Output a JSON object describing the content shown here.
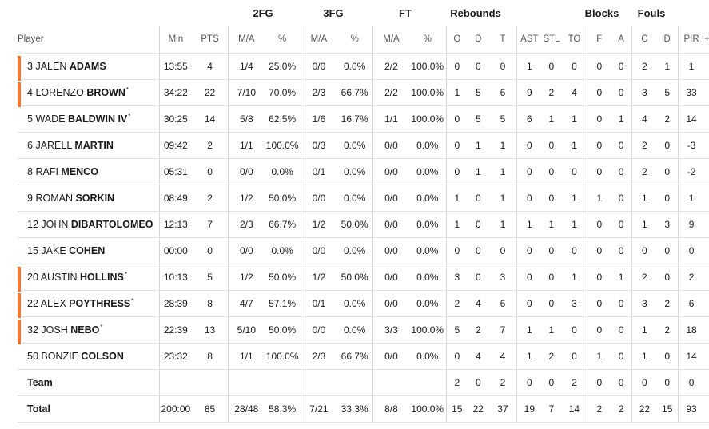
{
  "groups": {
    "two_fg": "2FG",
    "three_fg": "3FG",
    "ft": "FT",
    "rebounds": "Rebounds",
    "blocks": "Blocks",
    "fouls": "Fouls"
  },
  "columns": [
    "Player",
    "Min",
    "PTS",
    "M/A",
    "%",
    "M/A",
    "%",
    "M/A",
    "%",
    "O",
    "D",
    "T",
    "AST",
    "STL",
    "TO",
    "F",
    "A",
    "C",
    "D",
    "PIR",
    "+/"
  ],
  "accent": "#ee7a3a",
  "players": [
    {
      "num": "3",
      "first": "JALEN",
      "last": "ADAMS",
      "starter": "",
      "bar": true,
      "min": "13:55",
      "pts": "4",
      "fg2": "1/4",
      "fg2p": "25.0%",
      "fg3": "0/0",
      "fg3p": "0.0%",
      "ft": "2/2",
      "ftp": "100.0%",
      "o": "0",
      "d": "0",
      "t": "0",
      "ast": "1",
      "stl": "0",
      "to": "0",
      "bf": "0",
      "ba": "0",
      "fc": "2",
      "fd": "1",
      "pir": "1"
    },
    {
      "num": "4",
      "first": "LORENZO",
      "last": "BROWN",
      "starter": "*",
      "bar": true,
      "min": "34:22",
      "pts": "22",
      "fg2": "7/10",
      "fg2p": "70.0%",
      "fg3": "2/3",
      "fg3p": "66.7%",
      "ft": "2/2",
      "ftp": "100.0%",
      "o": "1",
      "d": "5",
      "t": "6",
      "ast": "9",
      "stl": "2",
      "to": "4",
      "bf": "0",
      "ba": "0",
      "fc": "3",
      "fd": "5",
      "pir": "33"
    },
    {
      "num": "5",
      "first": "WADE",
      "last": "BALDWIN IV",
      "starter": "*",
      "bar": false,
      "min": "30:25",
      "pts": "14",
      "fg2": "5/8",
      "fg2p": "62.5%",
      "fg3": "1/6",
      "fg3p": "16.7%",
      "ft": "1/1",
      "ftp": "100.0%",
      "o": "0",
      "d": "5",
      "t": "5",
      "ast": "6",
      "stl": "1",
      "to": "1",
      "bf": "0",
      "ba": "1",
      "fc": "4",
      "fd": "2",
      "pir": "14"
    },
    {
      "num": "6",
      "first": "JARELL",
      "last": "MARTIN",
      "starter": "",
      "bar": false,
      "min": "09:42",
      "pts": "2",
      "fg2": "1/1",
      "fg2p": "100.0%",
      "fg3": "0/3",
      "fg3p": "0.0%",
      "ft": "0/0",
      "ftp": "0.0%",
      "o": "0",
      "d": "1",
      "t": "1",
      "ast": "0",
      "stl": "0",
      "to": "1",
      "bf": "0",
      "ba": "0",
      "fc": "2",
      "fd": "0",
      "pir": "-3"
    },
    {
      "num": "8",
      "first": "RAFI",
      "last": "MENCO",
      "starter": "",
      "bar": false,
      "min": "05:31",
      "pts": "0",
      "fg2": "0/0",
      "fg2p": "0.0%",
      "fg3": "0/1",
      "fg3p": "0.0%",
      "ft": "0/0",
      "ftp": "0.0%",
      "o": "0",
      "d": "1",
      "t": "1",
      "ast": "0",
      "stl": "0",
      "to": "0",
      "bf": "0",
      "ba": "0",
      "fc": "2",
      "fd": "0",
      "pir": "-2"
    },
    {
      "num": "9",
      "first": "ROMAN",
      "last": "SORKIN",
      "starter": "",
      "bar": false,
      "min": "08:49",
      "pts": "2",
      "fg2": "1/2",
      "fg2p": "50.0%",
      "fg3": "0/0",
      "fg3p": "0.0%",
      "ft": "0/0",
      "ftp": "0.0%",
      "o": "1",
      "d": "0",
      "t": "1",
      "ast": "0",
      "stl": "0",
      "to": "1",
      "bf": "1",
      "ba": "0",
      "fc": "1",
      "fd": "0",
      "pir": "1"
    },
    {
      "num": "12",
      "first": "JOHN",
      "last": "DIBARTOLOMEO",
      "starter": "",
      "bar": false,
      "min": "12:13",
      "pts": "7",
      "fg2": "2/3",
      "fg2p": "66.7%",
      "fg3": "1/2",
      "fg3p": "50.0%",
      "ft": "0/0",
      "ftp": "0.0%",
      "o": "1",
      "d": "0",
      "t": "1",
      "ast": "1",
      "stl": "1",
      "to": "1",
      "bf": "0",
      "ba": "0",
      "fc": "1",
      "fd": "3",
      "pir": "9"
    },
    {
      "num": "15",
      "first": "JAKE",
      "last": "COHEN",
      "starter": "",
      "bar": false,
      "min": "00:00",
      "pts": "0",
      "fg2": "0/0",
      "fg2p": "0.0%",
      "fg3": "0/0",
      "fg3p": "0.0%",
      "ft": "0/0",
      "ftp": "0.0%",
      "o": "0",
      "d": "0",
      "t": "0",
      "ast": "0",
      "stl": "0",
      "to": "0",
      "bf": "0",
      "ba": "0",
      "fc": "0",
      "fd": "0",
      "pir": "0"
    },
    {
      "num": "20",
      "first": "AUSTIN",
      "last": "HOLLINS",
      "starter": "*",
      "bar": true,
      "min": "10:13",
      "pts": "5",
      "fg2": "1/2",
      "fg2p": "50.0%",
      "fg3": "1/2",
      "fg3p": "50.0%",
      "ft": "0/0",
      "ftp": "0.0%",
      "o": "3",
      "d": "0",
      "t": "3",
      "ast": "0",
      "stl": "0",
      "to": "1",
      "bf": "0",
      "ba": "1",
      "fc": "2",
      "fd": "0",
      "pir": "2"
    },
    {
      "num": "22",
      "first": "ALEX",
      "last": "POYTHRESS",
      "starter": "*",
      "bar": true,
      "min": "28:39",
      "pts": "8",
      "fg2": "4/7",
      "fg2p": "57.1%",
      "fg3": "0/1",
      "fg3p": "0.0%",
      "ft": "0/0",
      "ftp": "0.0%",
      "o": "2",
      "d": "4",
      "t": "6",
      "ast": "0",
      "stl": "0",
      "to": "3",
      "bf": "0",
      "ba": "0",
      "fc": "3",
      "fd": "2",
      "pir": "6"
    },
    {
      "num": "32",
      "first": "JOSH",
      "last": "NEBO",
      "starter": "*",
      "bar": true,
      "min": "22:39",
      "pts": "13",
      "fg2": "5/10",
      "fg2p": "50.0%",
      "fg3": "0/0",
      "fg3p": "0.0%",
      "ft": "3/3",
      "ftp": "100.0%",
      "o": "5",
      "d": "2",
      "t": "7",
      "ast": "1",
      "stl": "1",
      "to": "0",
      "bf": "0",
      "ba": "0",
      "fc": "1",
      "fd": "2",
      "pir": "18"
    },
    {
      "num": "50",
      "first": "BONZIE",
      "last": "COLSON",
      "starter": "",
      "bar": false,
      "min": "23:32",
      "pts": "8",
      "fg2": "1/1",
      "fg2p": "100.0%",
      "fg3": "2/3",
      "fg3p": "66.7%",
      "ft": "0/0",
      "ftp": "0.0%",
      "o": "0",
      "d": "4",
      "t": "4",
      "ast": "1",
      "stl": "2",
      "to": "0",
      "bf": "1",
      "ba": "0",
      "fc": "1",
      "fd": "0",
      "pir": "14"
    }
  ],
  "team": {
    "label": "Team",
    "min": "",
    "pts": "",
    "fg2": "",
    "fg2p": "",
    "fg3": "",
    "fg3p": "",
    "ft": "",
    "ftp": "",
    "o": "2",
    "d": "0",
    "t": "2",
    "ast": "0",
    "stl": "0",
    "to": "2",
    "bf": "0",
    "ba": "0",
    "fc": "0",
    "fd": "0",
    "pir": "0"
  },
  "total": {
    "label": "Total",
    "min": "200:00",
    "pts": "85",
    "fg2": "28/48",
    "fg2p": "58.3%",
    "fg3": "7/21",
    "fg3p": "33.3%",
    "ft": "8/8",
    "ftp": "100.0%",
    "o": "15",
    "d": "22",
    "t": "37",
    "ast": "19",
    "stl": "7",
    "to": "14",
    "bf": "2",
    "ba": "2",
    "fc": "22",
    "fd": "15",
    "pir": "93"
  }
}
